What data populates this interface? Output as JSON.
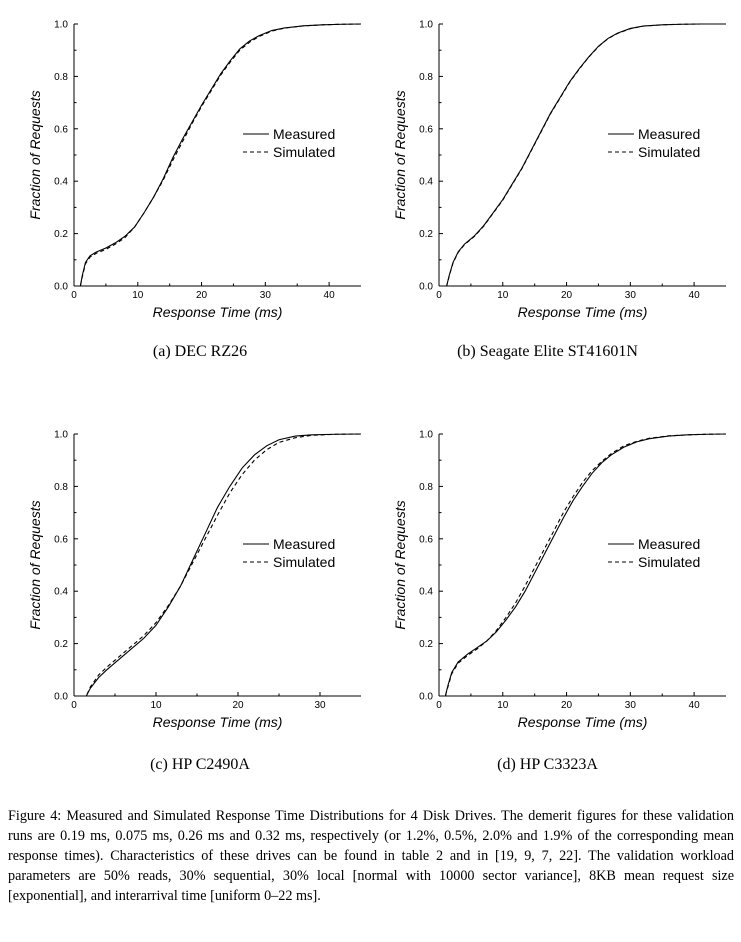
{
  "panels": [
    {
      "subcaption": "(a) DEC RZ26",
      "chart_data": {
        "type": "line",
        "xlabel": "Response Time (ms)",
        "ylabel": "Fraction of Requests",
        "xlim": [
          0,
          45
        ],
        "ylim": [
          0,
          1
        ],
        "xticks": [
          "0",
          "10",
          "20",
          "30",
          "40"
        ],
        "yticks": [
          "0.0",
          "0.2",
          "0.4",
          "0.6",
          "0.8",
          "1.0"
        ],
        "grid": false,
        "legend": "right",
        "series": [
          {
            "name": "Measured",
            "dash": "solid",
            "x": [
              0,
              1.0,
              1.3,
              1.8,
              2.5,
              3.5,
              5,
              6.5,
              8,
              9.5,
              11,
              12.5,
              14,
              15.5,
              17,
              18.5,
              20,
              21.5,
              23,
              24.5,
              26,
              27.5,
              29,
              31,
              33,
              36,
              39,
              42,
              45
            ],
            "y": [
              0,
              0,
              0.04,
              0.09,
              0.115,
              0.13,
              0.145,
              0.165,
              0.19,
              0.225,
              0.28,
              0.34,
              0.41,
              0.49,
              0.56,
              0.625,
              0.69,
              0.75,
              0.81,
              0.86,
              0.905,
              0.935,
              0.955,
              0.975,
              0.985,
              0.993,
              0.997,
              0.999,
              1.0
            ]
          },
          {
            "name": "Simulated",
            "dash": "dashed",
            "x": [
              0,
              1.0,
              1.3,
              1.8,
              2.5,
              3.5,
              5,
              6.5,
              8,
              9.5,
              11,
              12.5,
              14,
              15.5,
              17,
              18.5,
              20,
              21.5,
              23,
              24.5,
              26,
              27.5,
              29,
              31,
              33,
              36,
              39,
              42,
              45
            ],
            "y": [
              0,
              0,
              0.035,
              0.085,
              0.11,
              0.125,
              0.14,
              0.16,
              0.185,
              0.225,
              0.28,
              0.34,
              0.405,
              0.48,
              0.55,
              0.62,
              0.685,
              0.745,
              0.805,
              0.855,
              0.9,
              0.93,
              0.952,
              0.973,
              0.984,
              0.993,
              0.997,
              0.999,
              1.0
            ]
          }
        ]
      }
    },
    {
      "subcaption": "(b) Seagate Elite ST41601N",
      "chart_data": {
        "type": "line",
        "xlabel": "Response Time (ms)",
        "ylabel": "Fraction of Requests",
        "xlim": [
          0,
          45
        ],
        "ylim": [
          0,
          1
        ],
        "xticks": [
          "0",
          "10",
          "20",
          "30",
          "40"
        ],
        "yticks": [
          "0.0",
          "0.2",
          "0.4",
          "0.6",
          "0.8",
          "1.0"
        ],
        "grid": false,
        "legend": "right",
        "series": [
          {
            "name": "Measured",
            "dash": "solid",
            "x": [
              0,
              1.2,
              1.6,
              2.2,
              3,
              4,
              5.5,
              7,
              8.5,
              10,
              11.5,
              13,
              14.5,
              16,
              17.5,
              19,
              20.5,
              22,
              23.5,
              25,
              26.5,
              28,
              30,
              32,
              35,
              38,
              41,
              45
            ],
            "y": [
              0,
              0,
              0.04,
              0.09,
              0.13,
              0.16,
              0.19,
              0.23,
              0.28,
              0.33,
              0.39,
              0.45,
              0.52,
              0.59,
              0.66,
              0.72,
              0.78,
              0.83,
              0.875,
              0.915,
              0.945,
              0.965,
              0.983,
              0.992,
              0.997,
              0.999,
              1.0,
              1.0
            ]
          },
          {
            "name": "Simulated",
            "dash": "dashed",
            "x": [
              0,
              1.2,
              1.6,
              2.2,
              3,
              4,
              5.5,
              7,
              8.5,
              10,
              11.5,
              13,
              14.5,
              16,
              17.5,
              19,
              20.5,
              22,
              23.5,
              25,
              26.5,
              28,
              30,
              32,
              35,
              38,
              41,
              45
            ],
            "y": [
              0,
              0,
              0.038,
              0.088,
              0.128,
              0.158,
              0.188,
              0.228,
              0.278,
              0.328,
              0.388,
              0.448,
              0.518,
              0.588,
              0.658,
              0.718,
              0.778,
              0.828,
              0.874,
              0.914,
              0.944,
              0.964,
              0.982,
              0.992,
              0.997,
              0.999,
              1.0,
              1.0
            ]
          }
        ]
      }
    },
    {
      "subcaption": "(c) HP C2490A",
      "chart_data": {
        "type": "line",
        "xlabel": "Response Time (ms)",
        "ylabel": "Fraction of Requests",
        "xlim": [
          0,
          35
        ],
        "ylim": [
          0,
          1
        ],
        "xticks": [
          "0",
          "10",
          "20",
          "30"
        ],
        "yticks": [
          "0.0",
          "0.2",
          "0.4",
          "0.6",
          "0.8",
          "1.0"
        ],
        "grid": false,
        "legend": "right",
        "series": [
          {
            "name": "Measured",
            "dash": "solid",
            "x": [
              0,
              1.5,
              2,
              3,
              4,
              5.5,
              7,
              8.5,
              10,
              11.5,
              13,
              14.5,
              16,
              17.5,
              19,
              20.5,
              22,
              23.5,
              25,
              27,
              29,
              32,
              35
            ],
            "y": [
              0,
              0,
              0.03,
              0.07,
              0.1,
              0.14,
              0.18,
              0.22,
              0.27,
              0.34,
              0.42,
              0.52,
              0.62,
              0.72,
              0.8,
              0.87,
              0.92,
              0.955,
              0.978,
              0.992,
              0.997,
              0.999,
              1.0
            ]
          },
          {
            "name": "Simulated",
            "dash": "dashed",
            "x": [
              0,
              1.5,
              2,
              3,
              4,
              5.5,
              7,
              8.5,
              10,
              11.5,
              13,
              14.5,
              16,
              17.5,
              19,
              20.5,
              22,
              23.5,
              25,
              27,
              29,
              32,
              35
            ],
            "y": [
              0,
              0,
              0.035,
              0.08,
              0.11,
              0.15,
              0.19,
              0.23,
              0.28,
              0.345,
              0.42,
              0.51,
              0.6,
              0.69,
              0.775,
              0.845,
              0.9,
              0.94,
              0.968,
              0.986,
              0.995,
              0.999,
              1.0
            ]
          }
        ]
      }
    },
    {
      "subcaption": "(d) HP C3323A",
      "chart_data": {
        "type": "line",
        "xlabel": "Response Time (ms)",
        "ylabel": "Fraction of Requests",
        "xlim": [
          0,
          45
        ],
        "ylim": [
          0,
          1
        ],
        "xticks": [
          "0",
          "10",
          "20",
          "30",
          "40"
        ],
        "yticks": [
          "0.0",
          "0.2",
          "0.4",
          "0.6",
          "0.8",
          "1.0"
        ],
        "grid": false,
        "legend": "right",
        "series": [
          {
            "name": "Measured",
            "dash": "solid",
            "x": [
              0,
              1.0,
              1.4,
              2,
              3,
              4.5,
              6,
              7.5,
              9,
              10.5,
              12,
              13.5,
              15,
              16.5,
              18,
              19.5,
              21,
              22.5,
              24,
              25.5,
              27,
              29,
              31,
              33,
              36,
              39,
              42,
              45
            ],
            "y": [
              0,
              0,
              0.04,
              0.09,
              0.13,
              0.16,
              0.185,
              0.21,
              0.245,
              0.29,
              0.34,
              0.4,
              0.47,
              0.54,
              0.61,
              0.68,
              0.745,
              0.8,
              0.85,
              0.89,
              0.92,
              0.95,
              0.97,
              0.982,
              0.992,
              0.997,
              0.999,
              1.0
            ]
          },
          {
            "name": "Simulated",
            "dash": "dashed",
            "x": [
              0,
              1.0,
              1.4,
              2,
              3,
              4.5,
              6,
              7.5,
              9,
              10.5,
              12,
              13.5,
              15,
              16.5,
              18,
              19.5,
              21,
              22.5,
              24,
              25.5,
              27,
              29,
              31,
              33,
              36,
              39,
              42,
              45
            ],
            "y": [
              0,
              0,
              0.035,
              0.085,
              0.125,
              0.155,
              0.18,
              0.21,
              0.25,
              0.3,
              0.355,
              0.42,
              0.49,
              0.56,
              0.63,
              0.7,
              0.76,
              0.815,
              0.86,
              0.895,
              0.925,
              0.955,
              0.972,
              0.984,
              0.993,
              0.997,
              0.999,
              1.0
            ]
          }
        ]
      }
    }
  ],
  "caption": "Figure 4:  Measured and Simulated Response Time Distributions for 4 Disk Drives.  The demerit figures for these validation runs are 0.19 ms, 0.075 ms, 0.26 ms and 0.32 ms, respectively (or 1.2%, 0.5%, 2.0% and 1.9% of the corresponding mean response times). Characteristics of these drives can be found in table 2 and in [19, 9, 7, 22]. The validation workload parameters are 50% reads, 30% sequential, 30% local [normal with 10000 sector variance], 8KB mean request size [exponential], and interarrival time [uniform 0–22 ms]."
}
